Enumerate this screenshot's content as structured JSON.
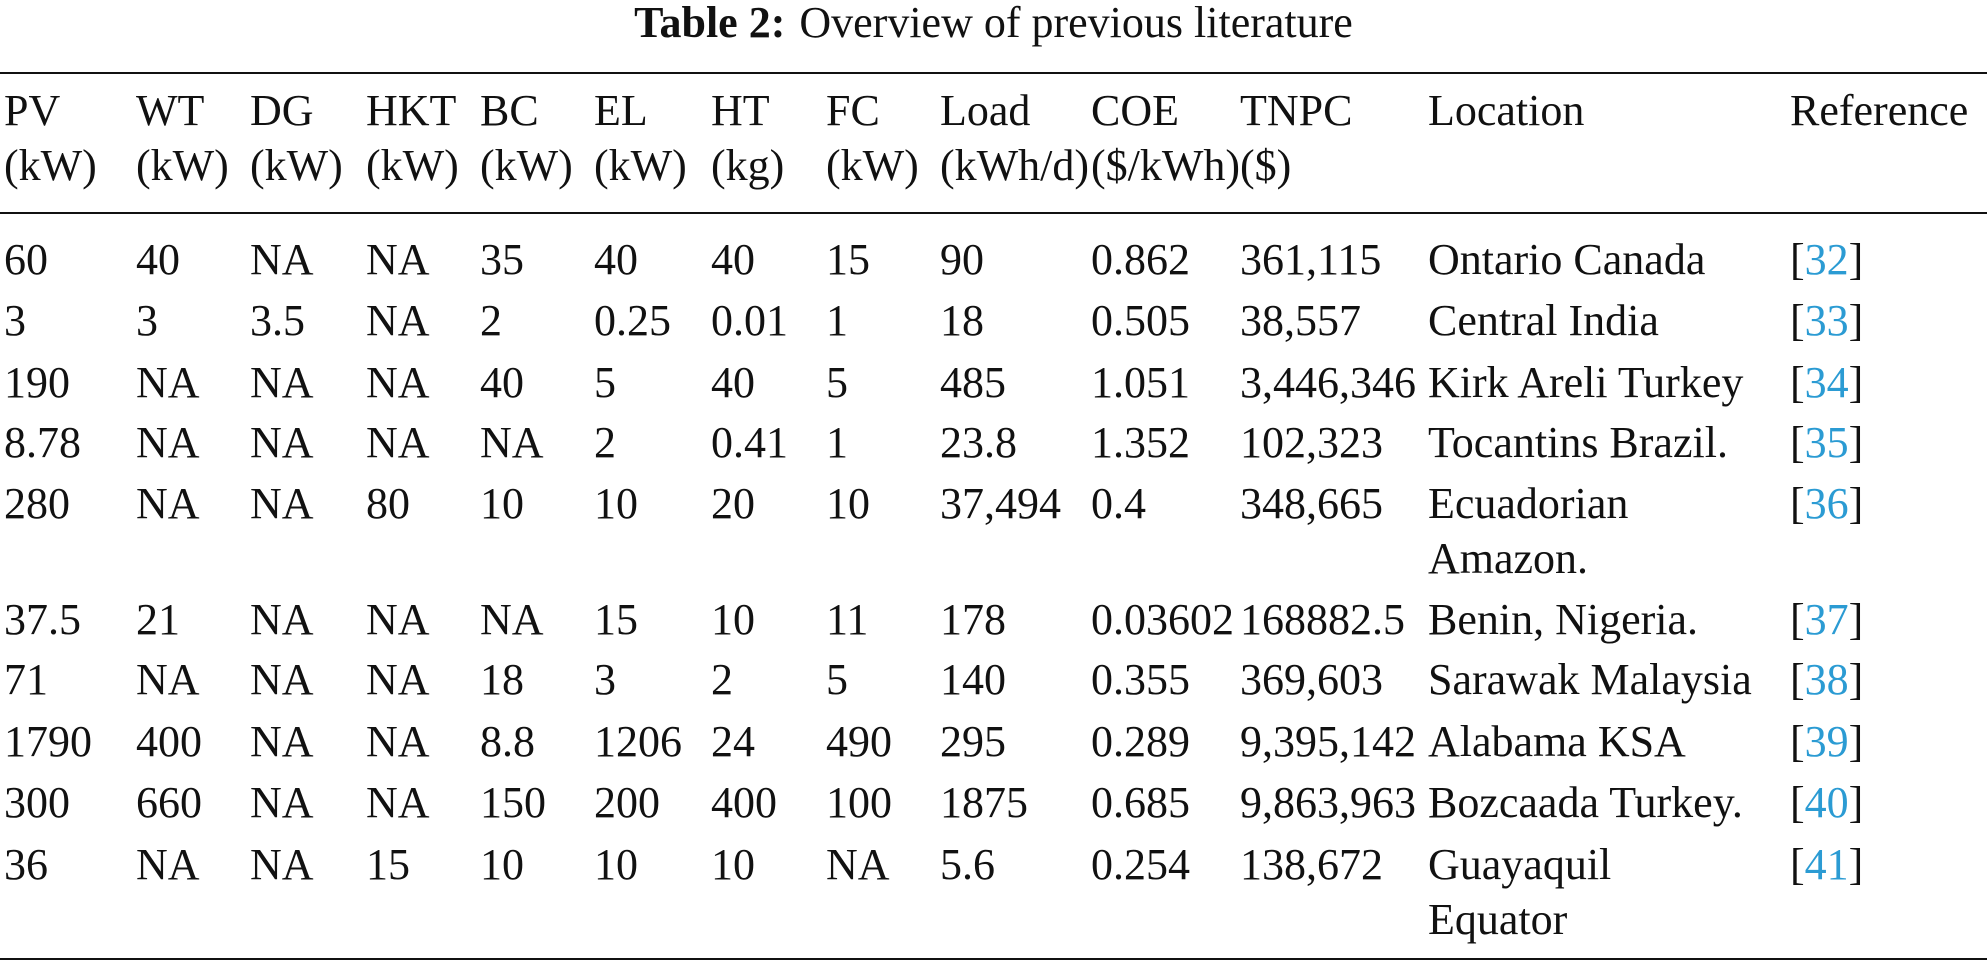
{
  "caption": {
    "label": "Table 2:",
    "text": "Overview of previous literature"
  },
  "table": {
    "columns": [
      {
        "name": "PV",
        "unit": "(kW)"
      },
      {
        "name": "WT",
        "unit": "(kW)"
      },
      {
        "name": "DG",
        "unit": "(kW)"
      },
      {
        "name": "HKT",
        "unit": "(kW)"
      },
      {
        "name": "BC",
        "unit": "(kW)"
      },
      {
        "name": "EL",
        "unit": "(kW)"
      },
      {
        "name": "HT",
        "unit": "(kg)"
      },
      {
        "name": "FC",
        "unit": "(kW)"
      },
      {
        "name": "Load",
        "unit": "(kWh/d)"
      },
      {
        "name": "COE",
        "unit": "($/kWh)"
      },
      {
        "name": "TNPC",
        "unit": "($)"
      },
      {
        "name": "Location"
      },
      {
        "name": "Reference"
      }
    ],
    "rows": [
      [
        "60",
        "40",
        "NA",
        "NA",
        "35",
        "40",
        "40",
        "15",
        "90",
        "0.862",
        "361,115",
        [
          "Ontario Canada"
        ],
        "[32]"
      ],
      [
        "3",
        "3",
        "3.5",
        "NA",
        "2",
        "0.25",
        "0.01",
        "1",
        "18",
        "0.505",
        "38,557",
        [
          "Central India"
        ],
        "[33]"
      ],
      [
        "190",
        "NA",
        "NA",
        "NA",
        "40",
        "5",
        "40",
        "5",
        "485",
        "1.051",
        "3,446,346",
        [
          "Kirk Areli Turkey"
        ],
        "[34]"
      ],
      [
        "8.78",
        "NA",
        "NA",
        "NA",
        "NA",
        "2",
        "0.41",
        "1",
        "23.8",
        "1.352",
        "102,323",
        [
          "Tocantins Brazil."
        ],
        "[35]"
      ],
      [
        "280",
        "NA",
        "NA",
        "80",
        "10",
        "10",
        "20",
        "10",
        "37,494",
        "0.4",
        "348,665",
        [
          "Ecuadorian",
          "Amazon."
        ],
        "[36]"
      ],
      [
        "37.5",
        "21",
        "NA",
        "NA",
        "NA",
        "15",
        "10",
        "11",
        "178",
        "0.03602",
        "168882.5",
        [
          "Benin, Nigeria."
        ],
        "[37]"
      ],
      [
        "71",
        "NA",
        "NA",
        "NA",
        "18",
        "3",
        "2",
        "5",
        "140",
        "0.355",
        "369,603",
        [
          "Sarawak Malaysia"
        ],
        "[38]"
      ],
      [
        "1790",
        "400",
        "NA",
        "NA",
        "8.8",
        "1206",
        "24",
        "490",
        "295",
        "0.289",
        "9,395,142",
        [
          "Alabama KSA"
        ],
        "[39]"
      ],
      [
        "300",
        "660",
        "NA",
        "NA",
        "150",
        "200",
        "400",
        "100",
        "1875",
        "0.685",
        "9,863,963",
        [
          "Bozcaada Turkey."
        ],
        "[40]"
      ],
      [
        "36",
        "NA",
        "NA",
        "15",
        "10",
        "10",
        "10",
        "NA",
        "5.6",
        "0.254",
        "138,672",
        [
          "Guayaquil",
          "Equator"
        ],
        "[41]"
      ]
    ]
  }
}
